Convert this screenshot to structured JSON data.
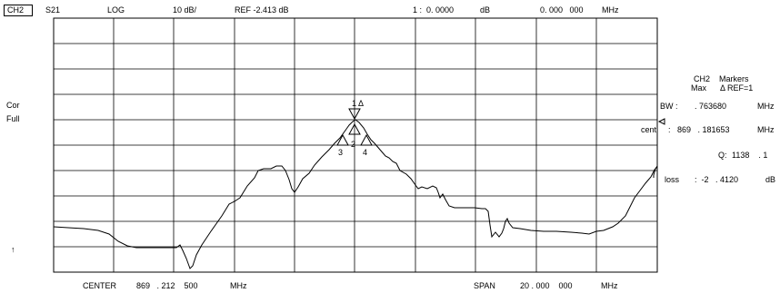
{
  "header": {
    "channel": "CH2",
    "param": "S21",
    "format": "LOG",
    "scale": "10 dB/",
    "ref": "REF -2.413 dB",
    "marker_readout": "1 :  0. 0000",
    "marker_unit": "dB",
    "marker_freq": "0. 000   000",
    "freq_unit": "MHz"
  },
  "left_labels": {
    "cor": "Cor",
    "full": "Full",
    "arrow": "↑"
  },
  "markers_panel": {
    "title": "CH2    Markers",
    "max_line": "Max      Δ REF=1",
    "bw_label": "BW :",
    "bw_value": ". 763680",
    "bw_unit": "MHz",
    "cent_label": "cent",
    "cent_value": ":   869   . 181653",
    "cent_unit": "MHz",
    "q_label": "Q:",
    "q_value": "1138    . 1",
    "loss_label": "loss",
    "loss_value": ":  -2   . 4120",
    "loss_unit": "dB"
  },
  "footer": {
    "center_label": "CENTER",
    "center_value": "869   . 212    500",
    "center_unit": "MHz",
    "span_label": "SPAN",
    "span_value": "20 . 000    000",
    "span_unit": "MHz"
  },
  "trace_markers": {
    "m1": "1 Δ",
    "m2": "2",
    "m3": "3",
    "m4": "4"
  },
  "colors": {
    "background": "#ffffff",
    "trace": "#000000",
    "grid": "#000000"
  }
}
